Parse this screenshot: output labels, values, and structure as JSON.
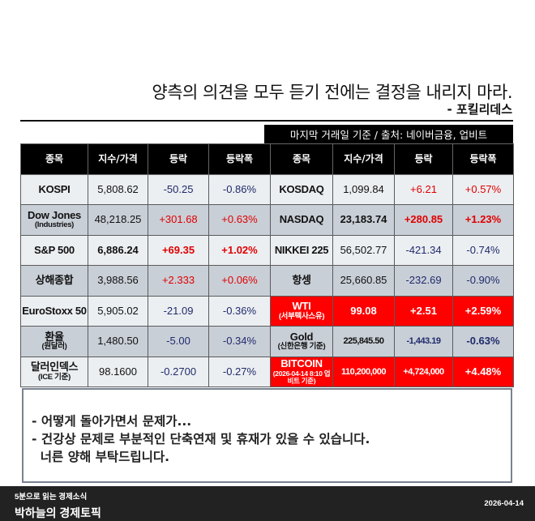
{
  "quote": {
    "text": "양측의 의견을 모두 듣기 전에는 결정을 내리지 마라.",
    "author": "- 포킬리데스"
  },
  "source": "마지막 거래일 기준 / 출처: 네이버금융, 업비트",
  "headers": [
    "종목",
    "지수/가격",
    "등락",
    "등락폭",
    "종목",
    "지수/가격",
    "등락",
    "등락폭"
  ],
  "rows": [
    {
      "left": {
        "name": "KOSPI",
        "sub": "",
        "price": "5,808.62",
        "change": "-50.25",
        "pct": "-0.86%"
      },
      "right": {
        "name": "KOSDAQ",
        "sub": "",
        "price": "1,099.84",
        "change": "+6.21",
        "pct": "+0.57%"
      }
    },
    {
      "left": {
        "name": "Dow Jones",
        "sub": "(Industries)",
        "price": "48,218.25",
        "change": "+301.68",
        "pct": "+0.63%"
      },
      "right": {
        "name": "NASDAQ",
        "sub": "",
        "price": "23,183.74",
        "change": "+280.85",
        "pct": "+1.23%"
      }
    },
    {
      "left": {
        "name": "S&P 500",
        "sub": "",
        "price": "6,886.24",
        "change": "+69.35",
        "pct": "+1.02%"
      },
      "right": {
        "name": "NIKKEI 225",
        "sub": "",
        "price": "56,502.77",
        "change": "-421.34",
        "pct": "-0.74%"
      }
    },
    {
      "left": {
        "name": "상해종합",
        "sub": "",
        "price": "3,988.56",
        "change": "+2.333",
        "pct": "+0.06%"
      },
      "right": {
        "name": "항셍",
        "sub": "",
        "price": "25,660.85",
        "change": "-232.69",
        "pct": "-0.90%"
      }
    },
    {
      "left": {
        "name": "EuroStoxx 50",
        "sub": "",
        "price": "5,905.02",
        "change": "-21.09",
        "pct": "-0.36%"
      },
      "right": {
        "name": "WTI",
        "sub": "(서부텍사스유)",
        "price": "99.08",
        "change": "+2.51",
        "pct": "+2.59%"
      }
    },
    {
      "left": {
        "name": "환율",
        "sub": "(원달러)",
        "price": "1,480.50",
        "change": "-5.00",
        "pct": "-0.34%"
      },
      "right": {
        "name": "Gold",
        "sub": "(신한은행 기준)",
        "price": "225,845.50",
        "change": "-1,443.19",
        "pct": "-0.63%"
      }
    },
    {
      "left": {
        "name": "달러인덱스",
        "sub": "(ICE 기준)",
        "price": "98.1600",
        "change": "-0.2700",
        "pct": "-0.27%"
      },
      "right": {
        "name": "BITCOIN",
        "sub": "(2026-04-14 8:10 업비트 기준)",
        "price": "110,200,000",
        "change": "+4,724,000",
        "pct": "+4.48%"
      }
    }
  ],
  "message": [
    "- 어떻게 돌아가면서 문제가...",
    "- 건강상 문제로 부분적인 단축연재 및 휴재가 있을 수 있습니다.",
    "  너른 양해 부탁드립니다."
  ],
  "footer": {
    "subtitle": "5분으로 읽는 경제소식",
    "title": "박하늘의 경제토픽",
    "date": "2026-04-14"
  },
  "colors": {
    "up": "#e00000",
    "down": "#1f2a6b",
    "highlight": "#ff0000"
  }
}
